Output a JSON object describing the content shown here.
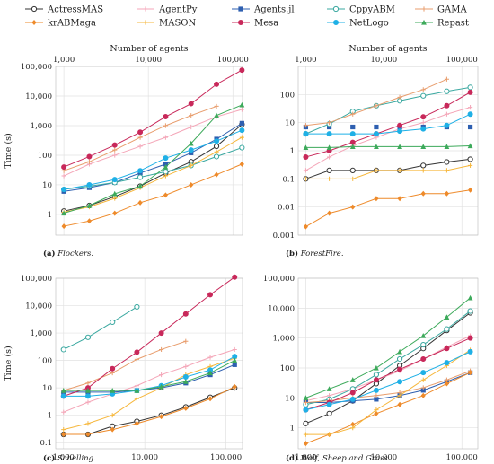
{
  "legend": [
    {
      "name": "ActressMAS",
      "color": "#333333",
      "marker": "circle-open"
    },
    {
      "name": "AgentPy",
      "color": "#f4a6b8",
      "marker": "plus"
    },
    {
      "name": "Agents.jl",
      "color": "#2e5fb0",
      "marker": "square"
    },
    {
      "name": "CppyABM",
      "color": "#3aa8a0",
      "marker": "circle-open"
    },
    {
      "name": "GAMA",
      "color": "#e89d6d",
      "marker": "plus"
    },
    {
      "name": "krABMaga",
      "color": "#ee8a2a",
      "marker": "diamond"
    },
    {
      "name": "MASON",
      "color": "#f6b73c",
      "marker": "plus"
    },
    {
      "name": "Mesa",
      "color": "#c8285a",
      "marker": "circle"
    },
    {
      "name": "NetLogo",
      "color": "#1fb0e6",
      "marker": "circle"
    },
    {
      "name": "Repast",
      "color": "#3daa5b",
      "marker": "triangle"
    }
  ],
  "chart_data": [
    {
      "type": "line",
      "caption_label": "(a)",
      "caption_text": "Flockers.",
      "xlabel": "Number of agents",
      "ylabel": "Time (s)",
      "x_scale": "log",
      "y_scale": "log",
      "xlim": [
        800,
        130000
      ],
      "ylim": [
        0.2,
        100000
      ],
      "x_ticks": [
        1000,
        10000,
        100000
      ],
      "x_tick_labels": [
        "1,000",
        "10,000",
        "100,000"
      ],
      "y_ticks": [
        1,
        10,
        100,
        1000,
        10000,
        100000
      ],
      "y_tick_labels": [
        "1",
        "10",
        "100",
        "1,000",
        "10,000",
        "100,000"
      ],
      "series": [
        {
          "name": "ActressMAS",
          "x": [
            1000,
            2000,
            4000,
            8000,
            16000,
            32000,
            64000,
            128000
          ],
          "y": [
            1.3,
            2,
            4,
            9,
            25,
            60,
            200,
            1100
          ]
        },
        {
          "name": "AgentPy",
          "x": [
            1000,
            2000,
            4000,
            8000,
            16000,
            32000,
            64000,
            128000
          ],
          "y": [
            20,
            50,
            100,
            200,
            400,
            900,
            2000,
            3500
          ]
        },
        {
          "name": "Agents.jl",
          "x": [
            1000,
            2000,
            4000,
            8000,
            16000,
            32000,
            64000,
            128000
          ],
          "y": [
            6,
            8,
            12,
            25,
            50,
            120,
            350,
            1200
          ]
        },
        {
          "name": "CppyABM",
          "x": [
            1000,
            2000,
            4000,
            8000,
            16000,
            32000,
            64000,
            128000
          ],
          "y": [
            7,
            9,
            12,
            18,
            28,
            45,
            90,
            180
          ]
        },
        {
          "name": "GAMA",
          "x": [
            1000,
            2000,
            4000,
            8000,
            16000,
            32000,
            64000
          ],
          "y": [
            30,
            60,
            150,
            400,
            1000,
            2200,
            4500
          ]
        },
        {
          "name": "krABMaga",
          "x": [
            1000,
            2000,
            4000,
            8000,
            16000,
            32000,
            64000,
            128000
          ],
          "y": [
            0.4,
            0.6,
            1.1,
            2.5,
            4.5,
            10,
            22,
            50
          ]
        },
        {
          "name": "MASON",
          "x": [
            1000,
            2000,
            4000,
            8000,
            16000,
            32000,
            64000,
            128000
          ],
          "y": [
            1.2,
            1.8,
            3.5,
            8,
            20,
            45,
            130,
            400
          ]
        },
        {
          "name": "Mesa",
          "x": [
            1000,
            2000,
            4000,
            8000,
            16000,
            32000,
            64000,
            128000
          ],
          "y": [
            40,
            90,
            220,
            600,
            2000,
            5500,
            25000,
            75000
          ]
        },
        {
          "name": "NetLogo",
          "x": [
            1000,
            2000,
            4000,
            8000,
            16000,
            32000,
            64000,
            128000
          ],
          "y": [
            7,
            10,
            15,
            30,
            80,
            150,
            300,
            700
          ]
        },
        {
          "name": "Repast",
          "x": [
            1000,
            2000,
            4000,
            8000,
            16000,
            32000,
            64000,
            128000
          ],
          "y": [
            1.1,
            2,
            5,
            9,
            40,
            250,
            2200,
            5000
          ]
        }
      ]
    },
    {
      "type": "line",
      "caption_label": "(b)",
      "caption_text": "ForestFire.",
      "xlabel": "Number of agents",
      "ylabel": "",
      "x_scale": "log",
      "y_scale": "log",
      "xlim": [
        800,
        160000
      ],
      "ylim": [
        0.001,
        1000
      ],
      "x_ticks": [
        1000,
        10000,
        100000
      ],
      "x_tick_labels": [
        "1,000",
        "10,000",
        "100,000"
      ],
      "y_ticks": [
        0.001,
        0.01,
        0.1,
        1,
        10,
        100
      ],
      "y_tick_labels": [
        "0.001",
        "0.01",
        "0.1",
        "1",
        "10",
        "100"
      ],
      "series": [
        {
          "name": "ActressMAS",
          "x": [
            1000,
            2000,
            4000,
            8000,
            16000,
            32000,
            64000,
            128000
          ],
          "y": [
            0.1,
            0.2,
            0.2,
            0.2,
            0.2,
            0.3,
            0.4,
            0.5
          ]
        },
        {
          "name": "AgentPy",
          "x": [
            1000,
            2000,
            4000,
            8000,
            16000,
            32000,
            64000,
            128000
          ],
          "y": [
            0.2,
            0.6,
            1.5,
            3,
            6,
            10,
            20,
            35
          ]
        },
        {
          "name": "Agents.jl",
          "x": [
            1000,
            2000,
            4000,
            8000,
            16000,
            32000,
            64000,
            128000
          ],
          "y": [
            7,
            7,
            7,
            7,
            7,
            7,
            7,
            7
          ]
        },
        {
          "name": "CppyABM",
          "x": [
            1000,
            2000,
            4000,
            8000,
            16000,
            32000,
            64000,
            128000
          ],
          "y": [
            4,
            9,
            25,
            40,
            60,
            90,
            130,
            180
          ]
        },
        {
          "name": "GAMA",
          "x": [
            1000,
            2000,
            4000,
            8000,
            16000,
            32000,
            64000
          ],
          "y": [
            8,
            10,
            20,
            40,
            80,
            150,
            350
          ]
        },
        {
          "name": "krABMaga",
          "x": [
            1000,
            2000,
            4000,
            8000,
            16000,
            32000,
            64000,
            128000
          ],
          "y": [
            0.002,
            0.006,
            0.01,
            0.02,
            0.02,
            0.03,
            0.03,
            0.04
          ]
        },
        {
          "name": "MASON",
          "x": [
            1000,
            2000,
            4000,
            8000,
            16000,
            32000,
            64000,
            128000
          ],
          "y": [
            0.1,
            0.1,
            0.1,
            0.2,
            0.2,
            0.2,
            0.2,
            0.3
          ]
        },
        {
          "name": "Mesa",
          "x": [
            1000,
            2000,
            4000,
            8000,
            16000,
            32000,
            64000,
            128000
          ],
          "y": [
            0.6,
            1,
            2,
            4,
            8,
            16,
            40,
            120
          ]
        },
        {
          "name": "NetLogo",
          "x": [
            1000,
            2000,
            4000,
            8000,
            16000,
            32000,
            64000,
            128000
          ],
          "y": [
            4,
            4,
            4,
            4,
            5,
            6,
            8,
            20
          ]
        },
        {
          "name": "Repast",
          "x": [
            1000,
            2000,
            4000,
            8000,
            16000,
            32000,
            64000,
            128000
          ],
          "y": [
            1.3,
            1.3,
            1.4,
            1.4,
            1.4,
            1.4,
            1.4,
            1.5
          ]
        }
      ]
    },
    {
      "type": "line",
      "caption_label": "(c)",
      "caption_text": "Schelling.",
      "xlabel": "",
      "ylabel": "Time (s)",
      "x_scale": "log",
      "y_scale": "log",
      "xlim": [
        800,
        160000
      ],
      "ylim": [
        0.06,
        100000
      ],
      "x_ticks": [
        1000,
        10000,
        100000
      ],
      "x_tick_labels": [
        "1,000",
        "10,000",
        "100,000"
      ],
      "y_ticks": [
        0.1,
        1,
        10,
        100,
        1000,
        10000,
        100000
      ],
      "y_tick_labels": [
        "0.1",
        "1",
        "10",
        "100",
        "1,000",
        "10,000",
        "100,000"
      ],
      "series": [
        {
          "name": "ActressMAS",
          "x": [
            1000,
            2000,
            4000,
            8000,
            16000,
            32000,
            64000,
            128000
          ],
          "y": [
            0.2,
            0.2,
            0.4,
            0.6,
            1,
            2,
            4.5,
            10
          ]
        },
        {
          "name": "AgentPy",
          "x": [
            1000,
            2000,
            4000,
            8000,
            16000,
            32000,
            64000,
            128000
          ],
          "y": [
            1.3,
            3,
            6,
            12,
            30,
            60,
            130,
            250
          ]
        },
        {
          "name": "Agents.jl",
          "x": [
            1000,
            2000,
            4000,
            8000,
            16000,
            32000,
            64000,
            128000
          ],
          "y": [
            7,
            7,
            7,
            8,
            10,
            15,
            30,
            70
          ]
        },
        {
          "name": "CppyABM",
          "x": [
            1000,
            2000,
            4000,
            8000
          ],
          "y": [
            250,
            700,
            2500,
            9000
          ]
        },
        {
          "name": "GAMA",
          "x": [
            1000,
            2000,
            4000,
            8000,
            16000,
            32000
          ],
          "y": [
            8,
            15,
            35,
            110,
            250,
            500
          ]
        },
        {
          "name": "krABMaga",
          "x": [
            1000,
            2000,
            4000,
            8000,
            16000,
            32000,
            64000,
            128000
          ],
          "y": [
            0.2,
            0.2,
            0.3,
            0.5,
            0.9,
            1.8,
            4,
            11
          ]
        },
        {
          "name": "MASON",
          "x": [
            1000,
            2000,
            4000,
            8000,
            16000,
            32000,
            64000,
            128000
          ],
          "y": [
            0.3,
            0.5,
            1,
            4,
            10,
            30,
            60,
            120
          ]
        },
        {
          "name": "Mesa",
          "x": [
            1000,
            2000,
            4000,
            8000,
            16000,
            32000,
            64000,
            128000
          ],
          "y": [
            5,
            10,
            50,
            200,
            1000,
            5000,
            25000,
            110000
          ]
        },
        {
          "name": "NetLogo",
          "x": [
            1000,
            2000,
            4000,
            8000,
            16000,
            32000,
            64000,
            128000
          ],
          "y": [
            5,
            5,
            6,
            8,
            12,
            25,
            45,
            140
          ]
        },
        {
          "name": "Repast",
          "x": [
            1000,
            2000,
            4000,
            8000,
            16000,
            32000,
            64000,
            128000
          ],
          "y": [
            8,
            8,
            8,
            8,
            11,
            17,
            35,
            100
          ]
        }
      ]
    },
    {
      "type": "line",
      "caption_label": "(d)",
      "caption_text": "Wolf, Sheep and Grass.",
      "xlabel": "",
      "ylabel": "",
      "x_scale": "log",
      "y_scale": "log",
      "xlim": [
        800,
        160000
      ],
      "ylim": [
        0.2,
        100000
      ],
      "x_ticks": [
        1000,
        10000,
        100000
      ],
      "x_tick_labels": [
        "1,000",
        "10,000",
        "100,000"
      ],
      "y_ticks": [
        1,
        10,
        100,
        1000,
        10000,
        100000
      ],
      "y_tick_labels": [
        "1",
        "10",
        "100",
        "1,000",
        "10,000",
        "100,000"
      ],
      "series": [
        {
          "name": "ActressMAS",
          "x": [
            1000,
            2000,
            4000,
            8000,
            16000,
            32000,
            64000,
            128000
          ],
          "y": [
            1.4,
            3,
            8,
            30,
            120,
            450,
            1800,
            7000
          ]
        },
        {
          "name": "AgentPy",
          "x": [
            1000,
            2000,
            4000,
            8000,
            16000,
            32000,
            64000,
            128000
          ],
          "y": [
            8,
            12,
            20,
            40,
            80,
            200,
            500,
            1200
          ]
        },
        {
          "name": "Agents.jl",
          "x": [
            1000,
            2000,
            4000,
            8000,
            16000,
            32000,
            64000,
            128000
          ],
          "y": [
            7,
            7,
            8,
            9,
            12,
            18,
            35,
            70
          ]
        },
        {
          "name": "CppyABM",
          "x": [
            1000,
            2000,
            4000,
            8000,
            16000,
            32000,
            64000,
            128000
          ],
          "y": [
            6,
            9,
            20,
            60,
            200,
            600,
            2000,
            8000
          ]
        },
        {
          "name": "GAMA",
          "x": [
            1000,
            2000,
            4000,
            8000,
            16000,
            32000,
            64000,
            128000
          ],
          "y": [
            7,
            8,
            10,
            12,
            15,
            22,
            40,
            80
          ]
        },
        {
          "name": "krABMaga",
          "x": [
            1000,
            2000,
            4000,
            8000,
            16000,
            32000,
            64000,
            128000
          ],
          "y": [
            0.3,
            0.6,
            1.3,
            3,
            6,
            12,
            30,
            70
          ]
        },
        {
          "name": "MASON",
          "x": [
            1000,
            2000,
            4000,
            8000,
            16000,
            32000,
            64000,
            128000
          ],
          "y": [
            0.6,
            0.6,
            1,
            4,
            12,
            40,
            120,
            400
          ]
        },
        {
          "name": "Mesa",
          "x": [
            1000,
            2000,
            4000,
            8000,
            16000,
            32000,
            64000,
            128000
          ],
          "y": [
            4,
            7,
            15,
            40,
            90,
            200,
            450,
            1000
          ]
        },
        {
          "name": "NetLogo",
          "x": [
            1000,
            2000,
            4000,
            8000,
            16000,
            32000,
            64000,
            128000
          ],
          "y": [
            4,
            6,
            9,
            18,
            35,
            70,
            150,
            350
          ]
        },
        {
          "name": "Repast",
          "x": [
            1000,
            2000,
            4000,
            8000,
            16000,
            32000,
            64000,
            128000
          ],
          "y": [
            10,
            20,
            40,
            100,
            350,
            1200,
            5000,
            22000
          ]
        }
      ]
    }
  ]
}
